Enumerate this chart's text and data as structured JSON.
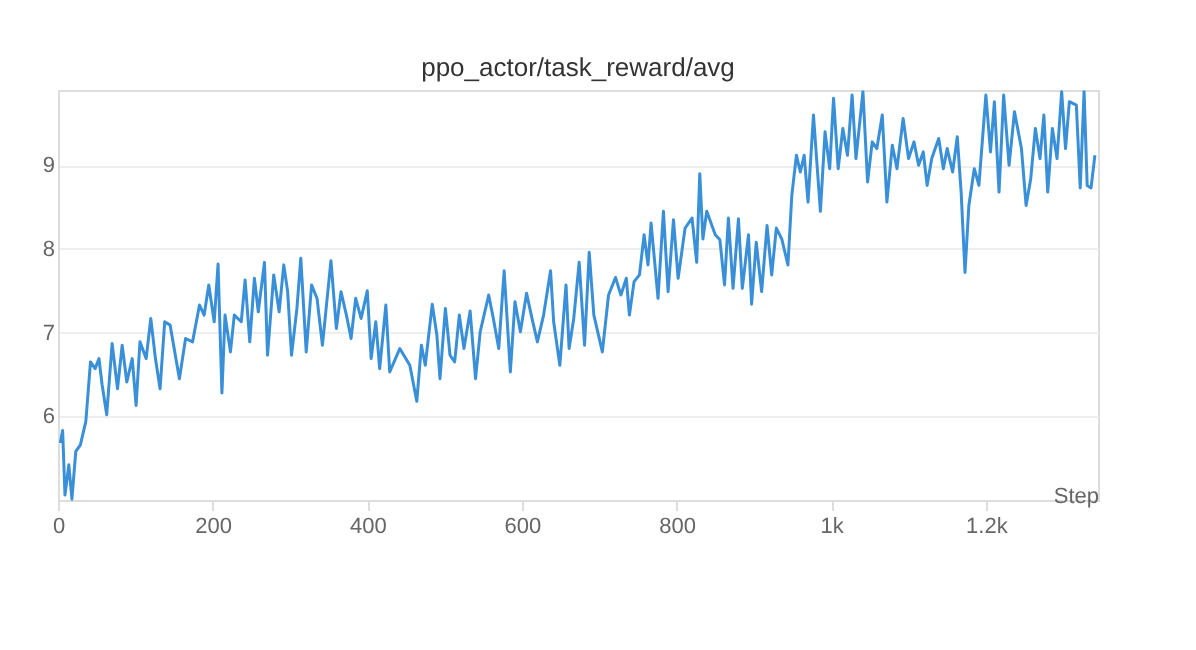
{
  "chart_data": {
    "type": "line",
    "title": "ppo_actor/task_reward/avg",
    "xlabel": "Step",
    "x": [
      3,
      6,
      9,
      14,
      18,
      23,
      29,
      36,
      42,
      48,
      53,
      57,
      63,
      70,
      77,
      83,
      89,
      96,
      101,
      106,
      114,
      120,
      126,
      132,
      138,
      145,
      157,
      165,
      174,
      183,
      189,
      195,
      202,
      207,
      212,
      216,
      223,
      228,
      237,
      242,
      248,
      254,
      259,
      267,
      271,
      279,
      286,
      292,
      297,
      302,
      309,
      314,
      321,
      328,
      335,
      342,
      353,
      360,
      366,
      373,
      379,
      385,
      392,
      400,
      405,
      411,
      416,
      424,
      429,
      442,
      455,
      464,
      470,
      475,
      484,
      490,
      494,
      501,
      507,
      513,
      519,
      525,
      533,
      540,
      546,
      557,
      563,
      570,
      577,
      585,
      591,
      598,
      606,
      613,
      620,
      628,
      637,
      641,
      649,
      657,
      661,
      667,
      674,
      681,
      687,
      693,
      704,
      712,
      721,
      728,
      735,
      739,
      745,
      752,
      758,
      763,
      767,
      776,
      783,
      789,
      796,
      802,
      811,
      820,
      826,
      830,
      834,
      839,
      850,
      856,
      862,
      867,
      873,
      880,
      885,
      893,
      897,
      903,
      910,
      917,
      923,
      929,
      936,
      944,
      949,
      955,
      960,
      965,
      970,
      977,
      986,
      992,
      998,
      1003,
      1009,
      1015,
      1021,
      1027,
      1032,
      1041,
      1047,
      1053,
      1059,
      1066,
      1072,
      1079,
      1085,
      1093,
      1100,
      1107,
      1113,
      1119,
      1124,
      1130,
      1139,
      1145,
      1150,
      1157,
      1163,
      1168,
      1173,
      1178,
      1185,
      1191,
      1200,
      1206,
      1211,
      1217,
      1223,
      1230,
      1237,
      1246,
      1252,
      1258,
      1264,
      1270,
      1275,
      1280,
      1286,
      1292,
      1298,
      1303,
      1308,
      1317,
      1322,
      1327,
      1331,
      1336,
      1341
    ],
    "series": [
      {
        "color": "#3a8fd9",
        "values": [
          5.68,
          5.83,
          5.06,
          5.42,
          5.01,
          5.58,
          5.66,
          5.94,
          6.65,
          6.57,
          6.69,
          6.38,
          6.02,
          6.87,
          6.33,
          6.85,
          6.41,
          6.69,
          6.13,
          6.89,
          6.69,
          7.17,
          6.69,
          6.33,
          7.13,
          7.09,
          6.45,
          6.93,
          6.89,
          7.33,
          7.21,
          7.57,
          7.13,
          7.82,
          6.28,
          7.21,
          6.77,
          7.21,
          7.13,
          7.63,
          6.89,
          7.65,
          7.25,
          7.84,
          6.73,
          7.69,
          7.25,
          7.81,
          7.49,
          6.73,
          7.29,
          7.89,
          6.77,
          7.57,
          7.41,
          6.85,
          7.86,
          7.05,
          7.49,
          7.21,
          6.93,
          7.41,
          7.17,
          7.5,
          6.69,
          7.13,
          6.57,
          7.33,
          6.53,
          6.81,
          6.61,
          6.18,
          6.85,
          6.61,
          7.34,
          6.97,
          6.45,
          7.29,
          6.73,
          6.65,
          7.21,
          6.81,
          7.26,
          6.45,
          7.01,
          7.45,
          7.17,
          6.81,
          7.74,
          6.53,
          7.37,
          7.01,
          7.47,
          7.17,
          6.89,
          7.21,
          7.74,
          7.13,
          6.61,
          7.57,
          6.81,
          7.17,
          7.84,
          6.85,
          7.96,
          7.21,
          6.77,
          7.45,
          7.66,
          7.45,
          7.65,
          7.21,
          7.61,
          7.69,
          8.17,
          7.81,
          8.31,
          7.41,
          8.45,
          7.49,
          8.35,
          7.65,
          8.25,
          8.37,
          7.84,
          8.9,
          8.12,
          8.45,
          8.17,
          8.11,
          7.57,
          8.37,
          7.53,
          8.36,
          7.53,
          8.17,
          7.34,
          8.08,
          7.49,
          8.28,
          7.69,
          8.25,
          8.12,
          7.81,
          8.64,
          9.12,
          8.92,
          9.12,
          8.56,
          9.6,
          8.45,
          9.4,
          8.96,
          9.8,
          8.96,
          9.44,
          9.12,
          9.84,
          9.08,
          9.88,
          8.8,
          9.28,
          9.2,
          9.6,
          8.56,
          9.24,
          8.96,
          9.56,
          9.08,
          9.28,
          9.0,
          9.16,
          8.76,
          9.08,
          9.32,
          8.96,
          9.2,
          8.92,
          9.34,
          8.68,
          7.72,
          8.52,
          8.96,
          8.76,
          9.84,
          9.16,
          9.76,
          8.68,
          9.84,
          9.0,
          9.64,
          9.2,
          8.52,
          8.84,
          9.44,
          9.08,
          9.6,
          8.68,
          9.44,
          9.08,
          9.88,
          9.2,
          9.76,
          9.72,
          8.73,
          9.88,
          8.76,
          8.73,
          9.12
        ]
      }
    ],
    "xlim": [
      0,
      1345
    ],
    "xticks": [
      0,
      200,
      400,
      600,
      800,
      {
        "value": 1000,
        "label": "1k"
      },
      {
        "value": 1200,
        "label": "1.2k"
      }
    ],
    "ylim": [
      5,
      9.9
    ],
    "yticks": [
      6,
      7,
      8,
      9
    ],
    "grid": "y",
    "line_style": "solid",
    "marker": "none",
    "legend": false
  }
}
